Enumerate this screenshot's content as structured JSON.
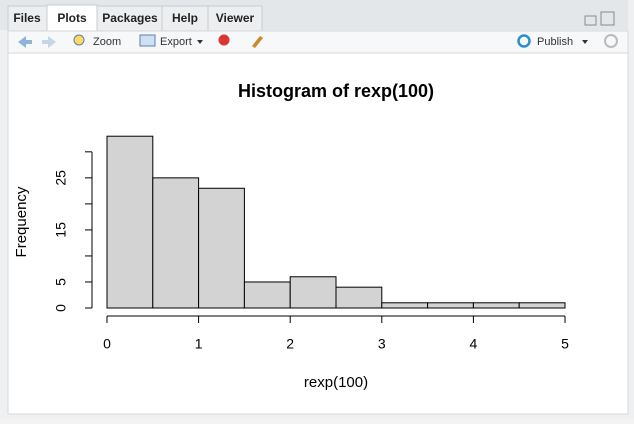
{
  "tabs": [
    "Files",
    "Plots",
    "Packages",
    "Help",
    "Viewer"
  ],
  "toolbar": {
    "zoom": "Zoom",
    "export": "Export",
    "publish": "Publish"
  },
  "chart_data": {
    "type": "histogram",
    "title": "Histogram of rexp(100)",
    "x_label": "rexp(100)",
    "y_label": "Frequency",
    "bins": [
      0,
      0.5,
      1,
      1.5,
      2,
      2.5,
      3,
      3.5,
      4,
      4.5,
      5
    ],
    "counts": [
      33,
      25,
      23,
      5,
      6,
      4,
      1,
      1,
      1,
      1
    ],
    "color": "#d3d3d3",
    "xlim": [
      0,
      5
    ],
    "xticks": [
      0,
      1,
      2,
      3,
      4,
      5
    ],
    "ylim": [
      0,
      34
    ],
    "yticks": [
      0,
      5,
      {
        "value": 10,
        "label": null
      },
      15,
      {
        "value": 20,
        "label": null
      },
      25,
      {
        "value": 30,
        "label": null
      }
    ]
  }
}
